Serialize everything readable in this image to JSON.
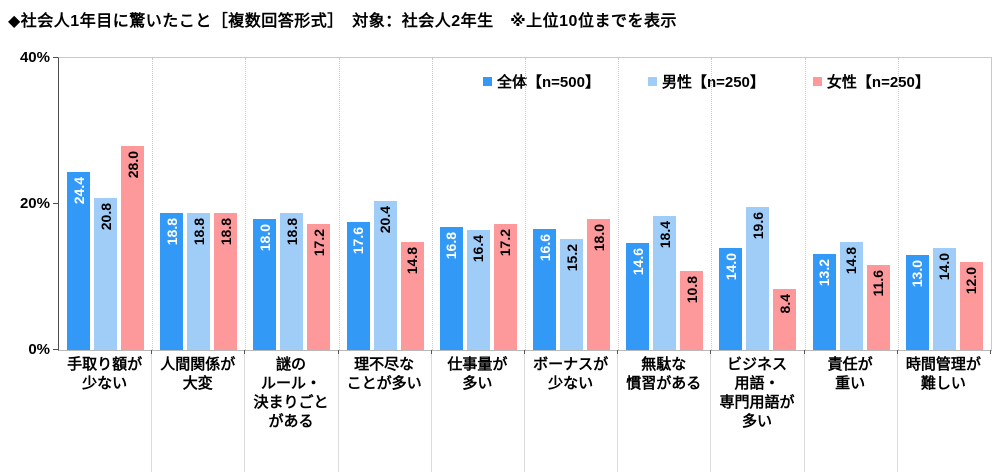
{
  "title": "◆社会人1年目に驚いたこと［複数回答形式］　対象：社会人2年生　※上位10位までを表示",
  "colors": {
    "series_overall": "#3399F6",
    "series_male": "#A0CCF8",
    "series_female": "#FD989B",
    "value_label_on_overall": "#FFFFFF",
    "value_label_on_light": "#000000",
    "grid": "#C9C9C9",
    "axis": "#4D4D4D"
  },
  "chart_data": {
    "type": "bar",
    "categories": [
      "手取り額が\n少ない",
      "人間関係が\n大変",
      "謎の\nルール・\n決まりごと\nがある",
      "理不尽な\nことが多い",
      "仕事量が\n多い",
      "ボーナスが\n少ない",
      "無駄な\n慣習がある",
      "ビジネス\n用語・\n専門用語が\n多い",
      "責任が\n重い",
      "時間管理が\n難しい"
    ],
    "series": [
      {
        "name": "全体【n=500】",
        "color": "#3399F6",
        "label_color": "#FFFFFF",
        "values": [
          24.4,
          18.8,
          18.0,
          17.6,
          16.8,
          16.6,
          14.6,
          14.0,
          13.2,
          13.0
        ]
      },
      {
        "name": "男性【n=250】",
        "color": "#A0CCF8",
        "label_color": "#000000",
        "values": [
          20.8,
          18.8,
          18.8,
          20.4,
          16.4,
          15.2,
          18.4,
          19.6,
          14.8,
          14.0
        ]
      },
      {
        "name": "女性【n=250】",
        "color": "#FD989B",
        "label_color": "#000000",
        "values": [
          28.0,
          18.8,
          17.2,
          14.8,
          17.2,
          18.0,
          10.8,
          8.4,
          11.6,
          12.0
        ]
      }
    ],
    "ylim": [
      0,
      40
    ],
    "yticks": [
      40,
      20,
      0
    ],
    "ytick_labels": [
      "40%",
      "20%",
      "0%"
    ],
    "grid": "vertical-dotted-between-groups",
    "legend_position": "top-center-right",
    "value_labels": "rotated-90-inside-bar-top"
  }
}
